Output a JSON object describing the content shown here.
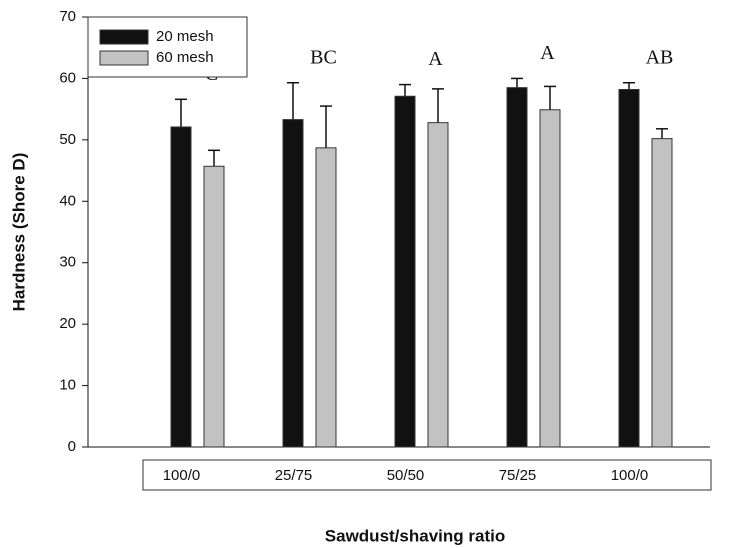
{
  "chart_data": {
    "type": "bar",
    "ylabel": "Hardness (Shore D)",
    "xlabel": "Sawdust/shaving ratio",
    "categories": [
      "100/0",
      "25/75",
      "50/50",
      "75/25",
      "100/0"
    ],
    "series": [
      {
        "name": "20 mesh",
        "color": "#111111",
        "values": [
          52.1,
          53.3,
          57.1,
          58.5,
          58.2
        ],
        "errors": [
          4.5,
          6.0,
          1.9,
          1.5,
          1.1
        ]
      },
      {
        "name": "60 mesh",
        "color": "#c2c2c2",
        "values": [
          45.7,
          48.7,
          52.8,
          54.9,
          50.2
        ],
        "errors": [
          2.6,
          6.8,
          5.5,
          3.8,
          1.6
        ]
      }
    ],
    "annotations": [
      "C",
      "BC",
      "A",
      "A",
      "AB"
    ],
    "ylim": [
      0,
      70
    ],
    "yticks": [
      0,
      10,
      20,
      30,
      40,
      50,
      60,
      70
    ],
    "legend": "upper left"
  }
}
